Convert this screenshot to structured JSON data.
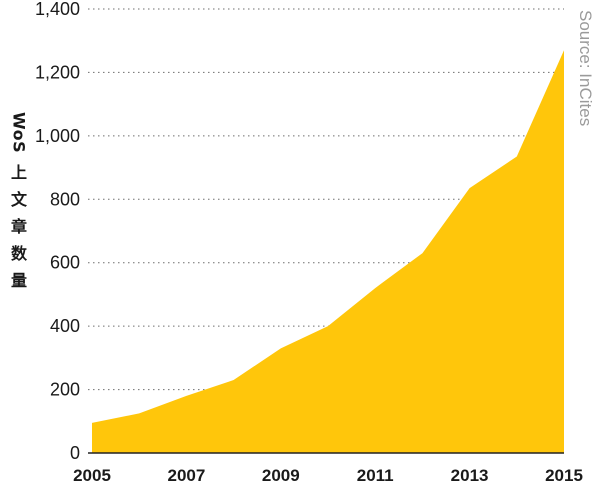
{
  "chart_data": {
    "type": "area",
    "ylabel_latin": "WoS",
    "ylabel_cjk": [
      "上",
      "文",
      "章",
      "数",
      "量"
    ],
    "source": "Source: InCites",
    "x": [
      2005,
      2006,
      2007,
      2008,
      2009,
      2010,
      2011,
      2012,
      2013,
      2014,
      2015
    ],
    "values": [
      95,
      125,
      180,
      230,
      330,
      400,
      520,
      630,
      835,
      935,
      1270
    ],
    "x_ticks": [
      "2005",
      "2007",
      "2009",
      "2011",
      "2013",
      "2015"
    ],
    "y_ticks": [
      "0",
      "200",
      "400",
      "600",
      "800",
      "1,000",
      "1,200",
      "1,400"
    ],
    "ylim": [
      0,
      1400
    ],
    "xlim": [
      2005,
      2015
    ],
    "grid": "horizontal dotted",
    "colors": {
      "fill": "#FFC60B",
      "grid": "#6e6e6e",
      "text": "#1a1a1a",
      "source": "#9a9a9a"
    }
  }
}
